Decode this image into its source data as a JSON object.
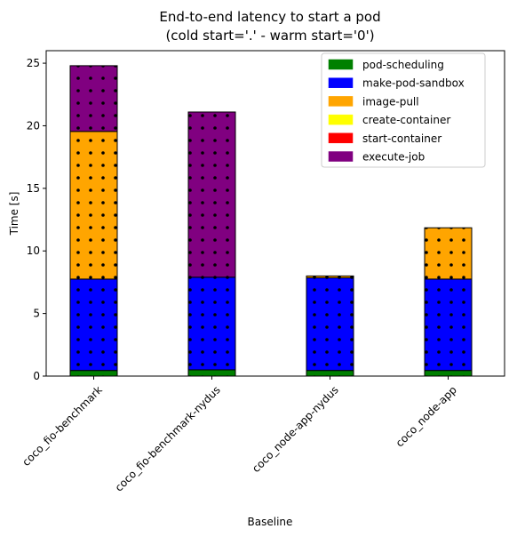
{
  "chart_data": {
    "type": "bar",
    "stacked": true,
    "title_line1": "End-to-end latency to start a pod",
    "title_line2": "(cold start='.' - warm start='0')",
    "xlabel": "Baseline",
    "ylabel": "Time [s]",
    "ylim": [
      0,
      26
    ],
    "yticks": [
      0,
      5,
      10,
      15,
      20,
      25
    ],
    "grid": false,
    "legend_position": "top-right",
    "hatch": "dots",
    "categories": [
      "coco_fio-benchmark",
      "coco_fio-benchmark-nydus",
      "coco_node-app-nydus",
      "coco_node-app"
    ],
    "series": [
      {
        "name": "pod-scheduling",
        "color": "#008000",
        "values": [
          0.45,
          0.5,
          0.45,
          0.45
        ]
      },
      {
        "name": "make-pod-sandbox",
        "color": "#0000ff",
        "values": [
          7.3,
          7.4,
          7.4,
          7.3
        ]
      },
      {
        "name": "image-pull",
        "color": "#ffa500",
        "values": [
          11.8,
          0.0,
          0.15,
          4.1
        ]
      },
      {
        "name": "create-container",
        "color": "#ffff00",
        "values": [
          0.0,
          0.0,
          0.0,
          0.0
        ]
      },
      {
        "name": "start-container",
        "color": "#ff0000",
        "values": [
          0.0,
          0.0,
          0.0,
          0.0
        ]
      },
      {
        "name": "execute-job",
        "color": "#800080",
        "values": [
          5.25,
          13.2,
          0.0,
          0.0
        ]
      }
    ]
  }
}
